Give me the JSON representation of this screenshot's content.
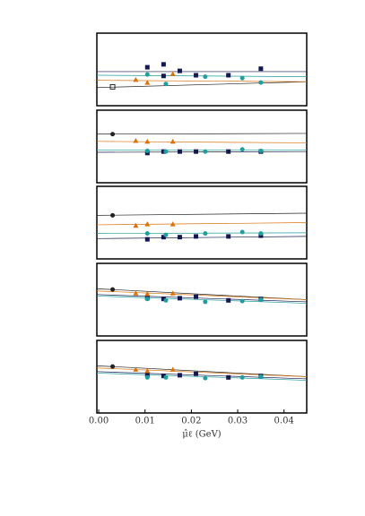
{
  "chart_data": [
    {
      "type": "scatter",
      "xlim": [
        -0.0004,
        0.0449
      ],
      "ylim": [
        0,
        1
      ],
      "series": [
        {
          "color": "#222222",
          "marker": "open-square",
          "x": [
            0.003
          ],
          "values": [
            0.26
          ]
        },
        {
          "color": "#d9730d",
          "marker": "triangle",
          "x": [
            0.008,
            0.0105,
            0.016
          ],
          "values": [
            0.36,
            0.32,
            0.44
          ]
        },
        {
          "color": "#14194d",
          "marker": "square",
          "x": [
            0.0105,
            0.014,
            0.014,
            0.0175,
            0.021,
            0.028,
            0.035
          ],
          "values": [
            0.53,
            0.57,
            0.41,
            0.48,
            0.42,
            0.42,
            0.51
          ]
        },
        {
          "color": "#1f9e9e",
          "marker": "circle",
          "x": [
            0.0105,
            0.0145,
            0.023,
            0.031,
            0.035
          ],
          "values": [
            0.43,
            0.3,
            0.4,
            0.38,
            0.32
          ]
        }
      ],
      "fits": [
        {
          "color": "#222222",
          "x": [
            -0.0004,
            0.0449
          ],
          "values": [
            0.25,
            0.33
          ]
        },
        {
          "color": "#d9730d",
          "x": [
            -0.0004,
            0.0449
          ],
          "values": [
            0.35,
            0.33
          ]
        },
        {
          "color": "#14194d",
          "x": [
            -0.0004,
            0.0449
          ],
          "values": [
            0.47,
            0.47
          ]
        },
        {
          "color": "#1f9e9e",
          "x": [
            -0.0004,
            0.0449
          ],
          "values": [
            0.42,
            0.4
          ]
        }
      ]
    },
    {
      "type": "scatter",
      "xlim": [
        -0.0004,
        0.0449
      ],
      "ylim": [
        0,
        1
      ],
      "series": [
        {
          "color": "#222222",
          "marker": "circle",
          "x": [
            0.003
          ],
          "values": [
            0.67
          ]
        },
        {
          "color": "#d9730d",
          "marker": "triangle",
          "x": [
            0.008,
            0.0105,
            0.016
          ],
          "values": [
            0.58,
            0.57,
            0.57
          ]
        },
        {
          "color": "#14194d",
          "marker": "square",
          "x": [
            0.0105,
            0.014,
            0.0175,
            0.021,
            0.028,
            0.035
          ],
          "values": [
            0.41,
            0.43,
            0.43,
            0.43,
            0.43,
            0.43
          ]
        },
        {
          "color": "#1f9e9e",
          "marker": "circle",
          "x": [
            0.0105,
            0.0145,
            0.023,
            0.031,
            0.035
          ],
          "values": [
            0.44,
            0.43,
            0.43,
            0.46,
            0.44
          ]
        }
      ],
      "fits": [
        {
          "color": "#222222",
          "x": [
            -0.0004,
            0.0449
          ],
          "values": [
            0.67,
            0.68
          ]
        },
        {
          "color": "#d9730d",
          "x": [
            -0.0004,
            0.0449
          ],
          "values": [
            0.57,
            0.55
          ]
        },
        {
          "color": "#1f9e9e",
          "x": [
            -0.0004,
            0.0449
          ],
          "values": [
            0.45,
            0.45
          ]
        },
        {
          "color": "#14194d",
          "x": [
            -0.0004,
            0.0449
          ],
          "values": [
            0.42,
            0.43
          ]
        }
      ]
    },
    {
      "type": "scatter",
      "xlim": [
        -0.0004,
        0.0449
      ],
      "ylim": [
        0,
        1
      ],
      "series": [
        {
          "color": "#222222",
          "marker": "circle",
          "x": [
            0.003
          ],
          "values": [
            0.6
          ]
        },
        {
          "color": "#d9730d",
          "marker": "triangle",
          "x": [
            0.008,
            0.0105,
            0.016
          ],
          "values": [
            0.46,
            0.48,
            0.48
          ]
        },
        {
          "color": "#14194d",
          "marker": "square",
          "x": [
            0.0105,
            0.014,
            0.0175,
            0.021,
            0.028,
            0.035
          ],
          "values": [
            0.27,
            0.3,
            0.3,
            0.31,
            0.31,
            0.32
          ]
        },
        {
          "color": "#1f9e9e",
          "marker": "circle",
          "x": [
            0.0105,
            0.0145,
            0.023,
            0.031,
            0.035
          ],
          "values": [
            0.35,
            0.33,
            0.35,
            0.37,
            0.35
          ]
        }
      ],
      "fits": [
        {
          "color": "#222222",
          "x": [
            -0.0004,
            0.0449
          ],
          "values": [
            0.6,
            0.63
          ]
        },
        {
          "color": "#d9730d",
          "x": [
            -0.0004,
            0.0449
          ],
          "values": [
            0.47,
            0.5
          ]
        },
        {
          "color": "#1f9e9e",
          "x": [
            -0.0004,
            0.0449
          ],
          "values": [
            0.35,
            0.36
          ]
        },
        {
          "color": "#14194d",
          "x": [
            -0.0004,
            0.0449
          ],
          "values": [
            0.28,
            0.31
          ]
        }
      ]
    },
    {
      "type": "scatter",
      "xlim": [
        -0.0004,
        0.0449
      ],
      "ylim": [
        0,
        1
      ],
      "series": [
        {
          "color": "#222222",
          "marker": "circle",
          "x": [
            0.003
          ],
          "values": [
            0.64
          ]
        },
        {
          "color": "#d9730d",
          "marker": "triangle",
          "x": [
            0.008,
            0.0105,
            0.016
          ],
          "values": [
            0.59,
            0.58,
            0.59
          ]
        },
        {
          "color": "#14194d",
          "marker": "square",
          "x": [
            0.0105,
            0.014,
            0.0175,
            0.021,
            0.028,
            0.035
          ],
          "values": [
            0.52,
            0.51,
            0.52,
            0.54,
            0.49,
            0.51
          ]
        },
        {
          "color": "#1f9e9e",
          "marker": "circle",
          "x": [
            0.0105,
            0.0145,
            0.023,
            0.031,
            0.035
          ],
          "values": [
            0.51,
            0.49,
            0.47,
            0.48,
            0.5
          ]
        }
      ],
      "fits": [
        {
          "color": "#222222",
          "x": [
            -0.0004,
            0.0449
          ],
          "values": [
            0.65,
            0.5
          ]
        },
        {
          "color": "#d9730d",
          "x": [
            -0.0004,
            0.0449
          ],
          "values": [
            0.62,
            0.5
          ]
        },
        {
          "color": "#14194d",
          "x": [
            -0.0004,
            0.0449
          ],
          "values": [
            0.57,
            0.47
          ]
        },
        {
          "color": "#1f9e9e",
          "x": [
            -0.0004,
            0.0449
          ],
          "values": [
            0.55,
            0.45
          ]
        }
      ]
    },
    {
      "type": "scatter",
      "xlim": [
        -0.0004,
        0.0449
      ],
      "ylim": [
        0,
        1
      ],
      "series": [
        {
          "color": "#222222",
          "marker": "circle",
          "x": [
            0.003
          ],
          "values": [
            0.64
          ]
        },
        {
          "color": "#d9730d",
          "marker": "triangle",
          "x": [
            0.008,
            0.0105,
            0.016
          ],
          "values": [
            0.6,
            0.58,
            0.6
          ]
        },
        {
          "color": "#14194d",
          "marker": "square",
          "x": [
            0.0105,
            0.014,
            0.0175,
            0.021,
            0.028,
            0.035
          ],
          "values": [
            0.52,
            0.51,
            0.52,
            0.54,
            0.49,
            0.51
          ]
        },
        {
          "color": "#1f9e9e",
          "marker": "circle",
          "x": [
            0.0105,
            0.0145,
            0.023,
            0.031,
            0.035
          ],
          "values": [
            0.49,
            0.49,
            0.48,
            0.49,
            0.5
          ]
        }
      ],
      "fits": [
        {
          "color": "#222222",
          "x": [
            -0.0004,
            0.0449
          ],
          "values": [
            0.65,
            0.5
          ]
        },
        {
          "color": "#d9730d",
          "x": [
            -0.0004,
            0.0449
          ],
          "values": [
            0.62,
            0.5
          ]
        },
        {
          "color": "#14194d",
          "x": [
            -0.0004,
            0.0449
          ],
          "values": [
            0.57,
            0.47
          ]
        },
        {
          "color": "#1f9e9e",
          "x": [
            -0.0004,
            0.0449
          ],
          "values": [
            0.55,
            0.45
          ]
        }
      ],
      "xticks": [
        {
          "value": 0,
          "label": "0.00"
        },
        0.01,
        0.02,
        0.03,
        0.04
      ],
      "xlabel": "μ̂ℓ (GeV)"
    }
  ]
}
